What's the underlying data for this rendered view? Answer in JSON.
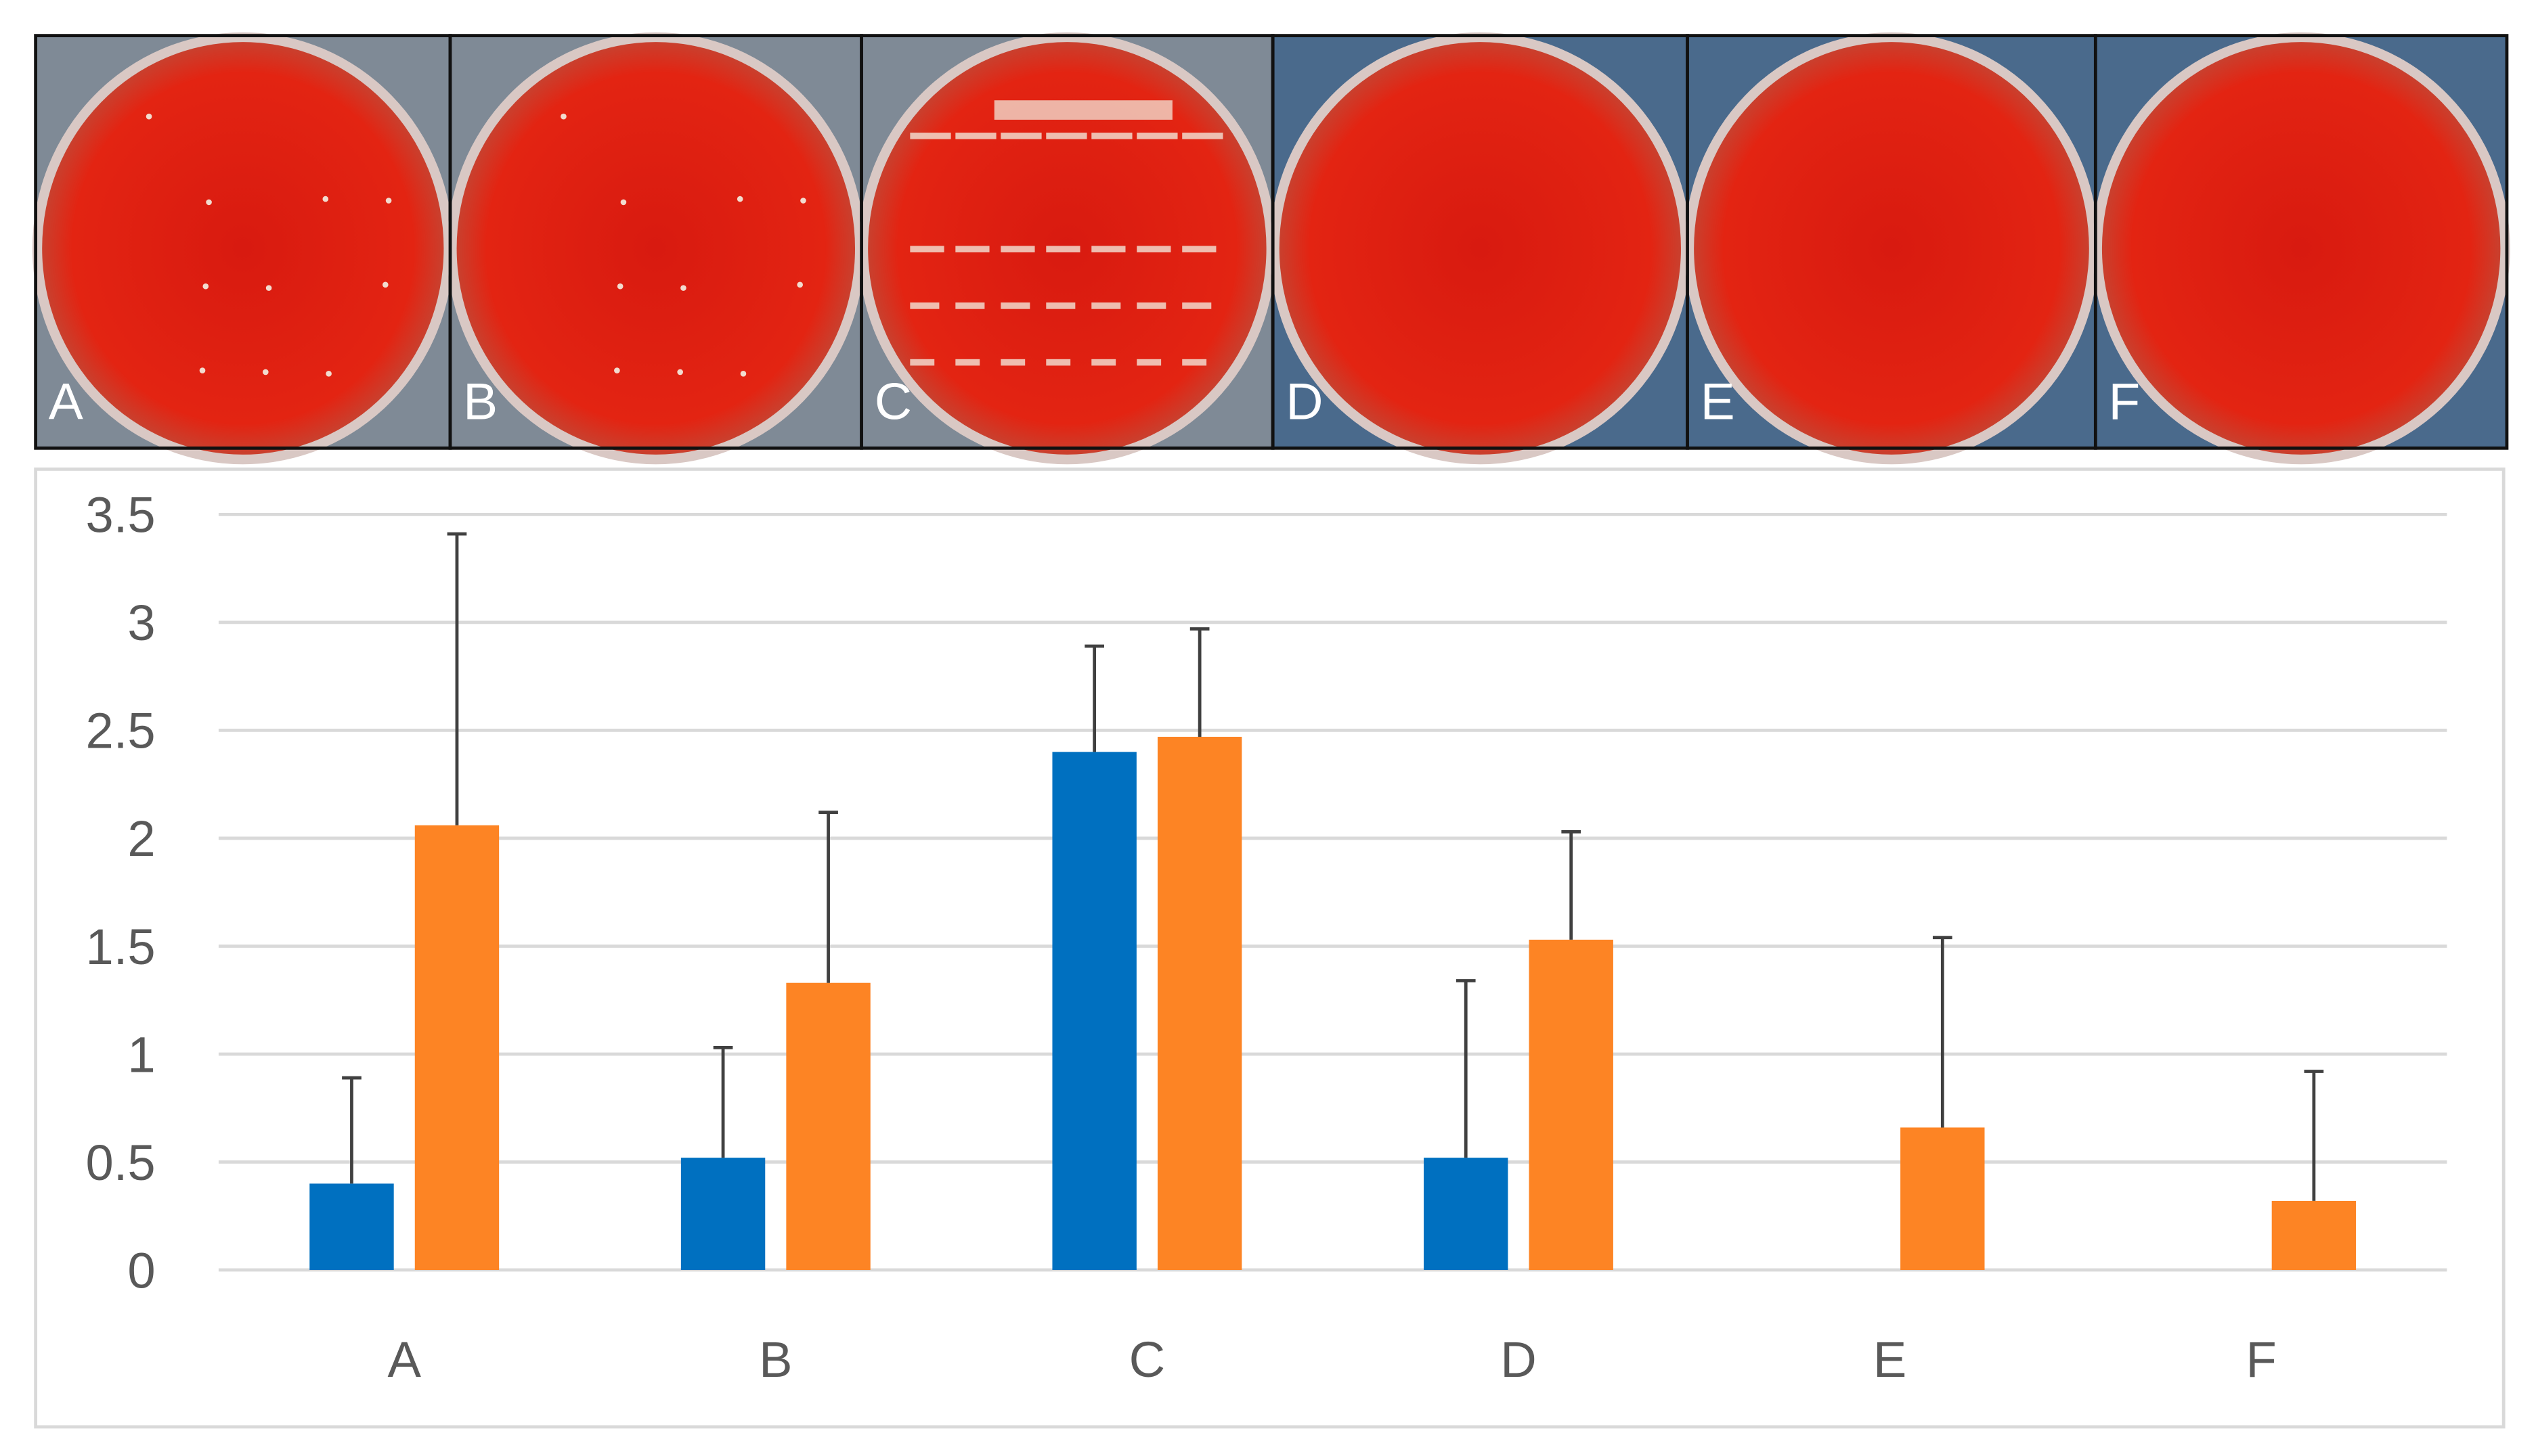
{
  "photo_panels": [
    "A",
    "B",
    "C",
    "D",
    "E",
    "F"
  ],
  "chart_data": {
    "type": "bar",
    "categories": [
      "A",
      "B",
      "C",
      "D",
      "E",
      "F"
    ],
    "series": [
      {
        "color": "#0070c0",
        "values": [
          0.4,
          0.52,
          2.4,
          0.52,
          null,
          null
        ],
        "errors": [
          0.49,
          0.51,
          0.49,
          0.82,
          null,
          null
        ]
      },
      {
        "color": "#fd8424",
        "values": [
          2.06,
          1.33,
          2.47,
          1.53,
          0.66,
          0.32
        ],
        "errors": [
          1.35,
          0.79,
          0.5,
          0.5,
          0.88,
          0.6
        ]
      }
    ],
    "ylim": [
      0,
      3.5
    ],
    "yticks": [
      0,
      0.5,
      1,
      1.5,
      2,
      2.5,
      3,
      3.5
    ],
    "grid": true
  }
}
